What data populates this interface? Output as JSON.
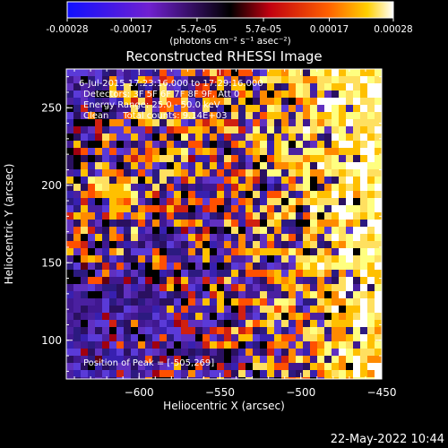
{
  "colorbar": {
    "tick_labels": [
      "-0.00028",
      "-0.00017",
      "-5.7e-05",
      "5.7e-05",
      "0.00017",
      "0.00028"
    ],
    "tick_values": [
      -0.00028,
      -0.00017,
      -5.7e-05,
      5.7e-05,
      0.00017,
      0.00028
    ],
    "range": [
      -0.00028,
      0.00028
    ],
    "units_line": "(photons cm⁻² s⁻¹ asec⁻²)",
    "colormap": "blue-purple-red-yellow-white"
  },
  "title": "Reconstructed RHESSI Image",
  "info": {
    "time": "6-Jul-2015 17:23:16.000 to 17:29:16.000",
    "detectors": "Detectors: 3F 5F 6F 7F 8F 9F, Att 0",
    "energy": "Energy Range: 25.0 - 50.0 keV",
    "clean": "Clean     Total counts: 9.14E+03"
  },
  "peak": "Position of Peak = [-505,269]",
  "axes": {
    "xlabel": "Heliocentric X (arcsec)",
    "ylabel": "Heliocentric Y (arcsec)",
    "xrange": [
      -645,
      -450
    ],
    "yrange": [
      75,
      275
    ],
    "x_ticks": [
      {
        "value": -600,
        "label": "−600"
      },
      {
        "value": -550,
        "label": "−550"
      },
      {
        "value": -500,
        "label": "−500"
      },
      {
        "value": -450,
        "label": "−450"
      }
    ],
    "y_ticks": [
      {
        "value": 100,
        "label": "100"
      },
      {
        "value": 150,
        "label": "150"
      },
      {
        "value": 200,
        "label": "200"
      },
      {
        "value": 250,
        "label": "250"
      }
    ]
  },
  "timestamp": "22-May-2022 10:44"
}
